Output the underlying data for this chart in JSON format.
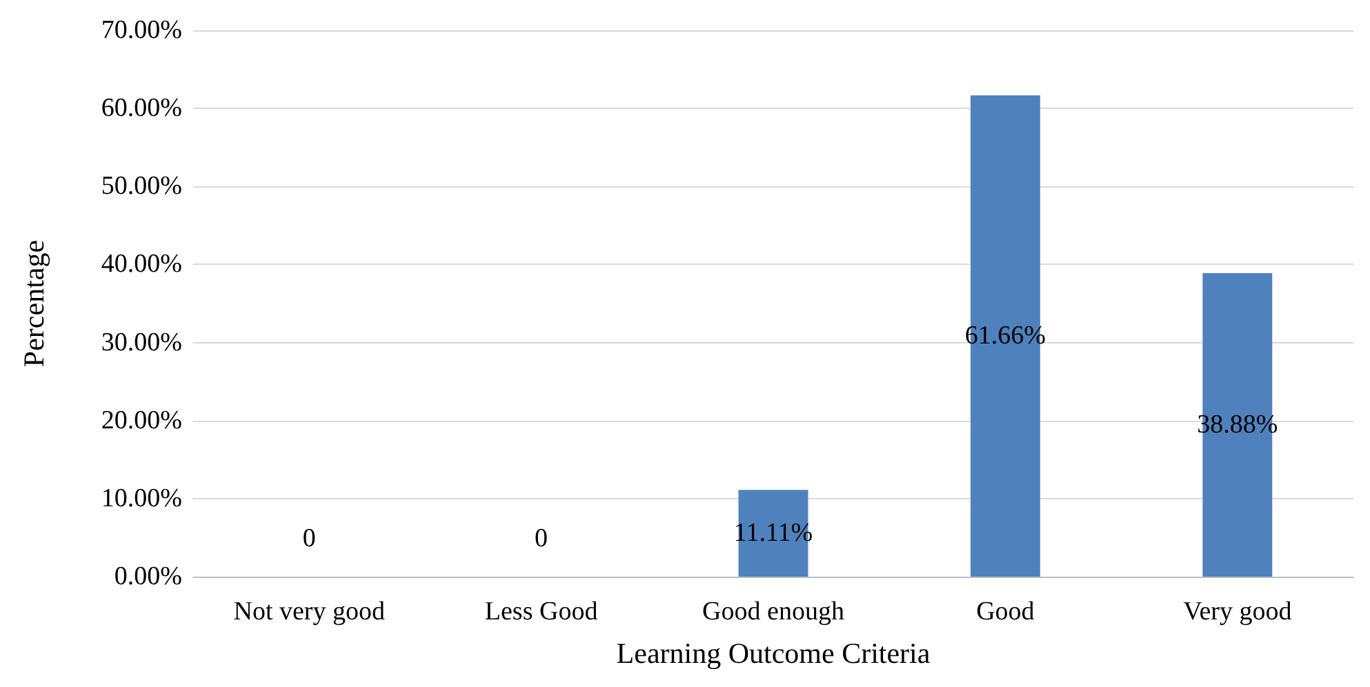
{
  "chart_data": {
    "type": "bar",
    "xlabel": "Learning Outcome Criteria",
    "ylabel": "Percentage",
    "categories": [
      "Not very good",
      "Less Good",
      "Good enough",
      "Good",
      "Very good"
    ],
    "values": [
      0,
      0,
      11.11,
      61.66,
      38.88
    ],
    "value_labels": [
      "0",
      "0",
      "11.11%",
      "61.66%",
      "38.88%"
    ],
    "color": "#4f81bd",
    "ylim": [
      0,
      70
    ],
    "yticks": [
      {
        "value": 0,
        "label": "0.00%"
      },
      {
        "value": 10,
        "label": "10.00%"
      },
      {
        "value": 20,
        "label": "20.00%"
      },
      {
        "value": 30,
        "label": "30.00%"
      },
      {
        "value": 40,
        "label": "40.00%"
      },
      {
        "value": 50,
        "label": "50.00%"
      },
      {
        "value": 60,
        "label": "60.00%"
      },
      {
        "value": 70,
        "label": "70.00%"
      }
    ],
    "grid": "y"
  }
}
